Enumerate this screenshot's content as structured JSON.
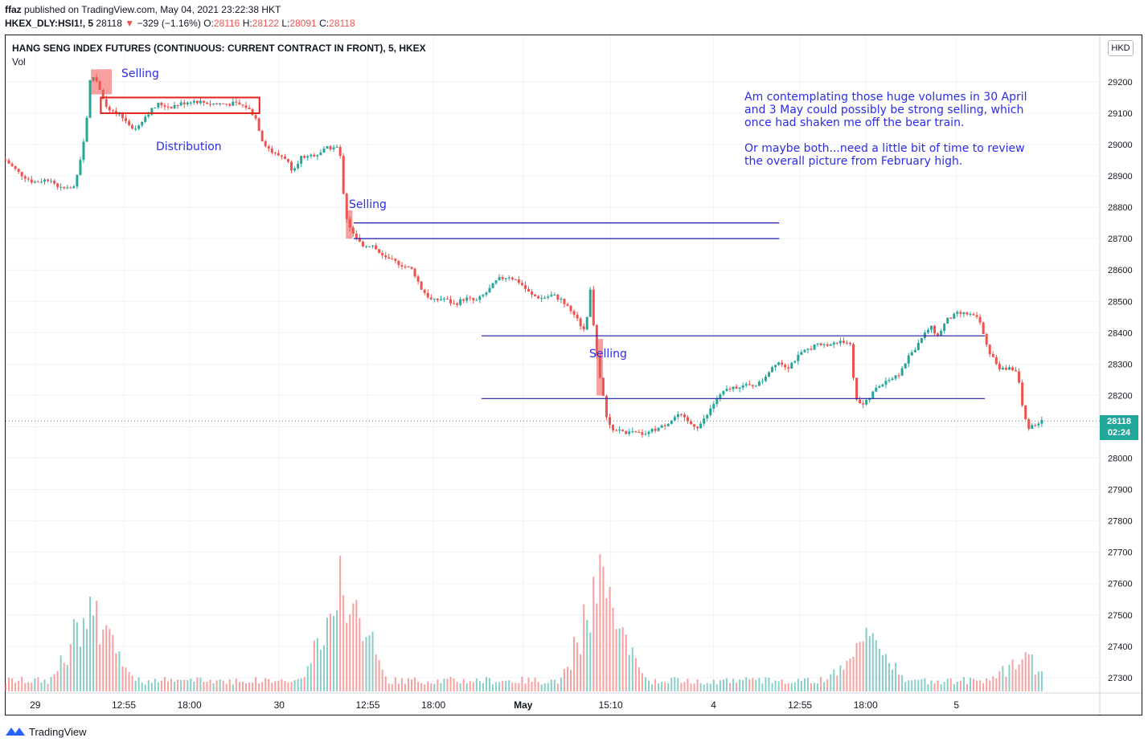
{
  "header": {
    "author": "ffaz",
    "published_text": "published on TradingView.com, May 04, 2021 23:22:38 HKT",
    "symbol": "HKEX_DLY:HSI1!, 5",
    "last": "28118",
    "change_arrow": "▼",
    "change": "−329 (−1.16%)",
    "o_label": "O:",
    "o": "28116",
    "h_label": "H:",
    "h": "28122",
    "l_label": "L:",
    "l": "28091",
    "c_label": "C:",
    "c": "28118"
  },
  "chart_title": "HANG SENG INDEX FUTURES (CONTINUOUS: CURRENT CONTRACT IN FRONT), 5, HKEX",
  "volume_label": "Vol",
  "currency": "HKD",
  "price_tag": {
    "price": "28118",
    "countdown": "02:24"
  },
  "annotations": {
    "selling_1": "Selling",
    "distribution": "Distribution",
    "selling_2": "Selling",
    "selling_3": "Selling",
    "note_p1": "Am contemplating those huge volumes in 30 April\nand 3 May could possibly be strong selling, which\nonce had shaken me off the bear train.",
    "note_p2": "Or maybe both...need a little bit of time to review\nthe overall picture from February high."
  },
  "footer": {
    "brand": "TradingView",
    "logo_icon": "tradingview-logo-icon"
  },
  "colors": {
    "up": "#26a69a",
    "down": "#ef5350",
    "annotation": "#2c2ce6",
    "accent": "#22a79b"
  },
  "chart_data": {
    "type": "candlestick",
    "x_tick_labels": [
      "29",
      "12:55",
      "18:00",
      "30",
      "12:55",
      "18:00",
      "May",
      "15:10",
      "4",
      "12:55",
      "18:00",
      "5"
    ],
    "y_ticks": [
      27300,
      27400,
      27500,
      27600,
      27700,
      27800,
      27900,
      28000,
      28100,
      28200,
      28300,
      28400,
      28500,
      28600,
      28700,
      28800,
      28900,
      29000,
      29100,
      29200
    ],
    "ylim": [
      27240,
      29300
    ],
    "last_price": 28118,
    "price_path": [
      [
        0,
        28950
      ],
      [
        0.012,
        28910
      ],
      [
        0.025,
        28880
      ],
      [
        0.04,
        28890
      ],
      [
        0.05,
        28860
      ],
      [
        0.062,
        28860
      ],
      [
        0.068,
        28950
      ],
      [
        0.073,
        29040
      ],
      [
        0.077,
        29200
      ],
      [
        0.081,
        29220
      ],
      [
        0.087,
        29170
      ],
      [
        0.093,
        29110
      ],
      [
        0.105,
        29090
      ],
      [
        0.118,
        29050
      ],
      [
        0.13,
        29100
      ],
      [
        0.14,
        29130
      ],
      [
        0.15,
        29120
      ],
      [
        0.17,
        29140
      ],
      [
        0.19,
        29130
      ],
      [
        0.21,
        29130
      ],
      [
        0.22,
        29120
      ],
      [
        0.228,
        29090
      ],
      [
        0.235,
        29010
      ],
      [
        0.245,
        28970
      ],
      [
        0.255,
        28960
      ],
      [
        0.262,
        28920
      ],
      [
        0.27,
        28960
      ],
      [
        0.285,
        28970
      ],
      [
        0.295,
        28990
      ],
      [
        0.305,
        28990
      ],
      [
        0.31,
        28800
      ],
      [
        0.312,
        28760
      ],
      [
        0.318,
        28710
      ],
      [
        0.325,
        28680
      ],
      [
        0.335,
        28680
      ],
      [
        0.345,
        28640
      ],
      [
        0.36,
        28620
      ],
      [
        0.372,
        28600
      ],
      [
        0.38,
        28540
      ],
      [
        0.39,
        28500
      ],
      [
        0.4,
        28510
      ],
      [
        0.41,
        28490
      ],
      [
        0.42,
        28510
      ],
      [
        0.43,
        28500
      ],
      [
        0.44,
        28530
      ],
      [
        0.45,
        28570
      ],
      [
        0.46,
        28580
      ],
      [
        0.47,
        28560
      ],
      [
        0.48,
        28520
      ],
      [
        0.49,
        28510
      ],
      [
        0.5,
        28520
      ],
      [
        0.51,
        28500
      ],
      [
        0.52,
        28450
      ],
      [
        0.525,
        28430
      ],
      [
        0.53,
        28400
      ],
      [
        0.535,
        28560
      ],
      [
        0.538,
        28390
      ],
      [
        0.541,
        28300
      ],
      [
        0.546,
        28200
      ],
      [
        0.55,
        28110
      ],
      [
        0.556,
        28090
      ],
      [
        0.57,
        28080
      ],
      [
        0.585,
        28080
      ],
      [
        0.6,
        28100
      ],
      [
        0.615,
        28140
      ],
      [
        0.625,
        28110
      ],
      [
        0.633,
        28100
      ],
      [
        0.64,
        28130
      ],
      [
        0.65,
        28190
      ],
      [
        0.66,
        28220
      ],
      [
        0.67,
        28230
      ],
      [
        0.68,
        28230
      ],
      [
        0.69,
        28240
      ],
      [
        0.698,
        28280
      ],
      [
        0.705,
        28310
      ],
      [
        0.715,
        28290
      ],
      [
        0.72,
        28310
      ],
      [
        0.73,
        28340
      ],
      [
        0.74,
        28360
      ],
      [
        0.75,
        28360
      ],
      [
        0.762,
        28370
      ],
      [
        0.772,
        28370
      ],
      [
        0.776,
        28200
      ],
      [
        0.78,
        28180
      ],
      [
        0.785,
        28170
      ],
      [
        0.795,
        28220
      ],
      [
        0.805,
        28250
      ],
      [
        0.815,
        28260
      ],
      [
        0.825,
        28320
      ],
      [
        0.835,
        28370
      ],
      [
        0.845,
        28420
      ],
      [
        0.852,
        28390
      ],
      [
        0.86,
        28440
      ],
      [
        0.87,
        28460
      ],
      [
        0.88,
        28460
      ],
      [
        0.89,
        28440
      ],
      [
        0.896,
        28360
      ],
      [
        0.902,
        28320
      ],
      [
        0.91,
        28280
      ],
      [
        0.918,
        28290
      ],
      [
        0.925,
        28270
      ],
      [
        0.928,
        28200
      ],
      [
        0.93,
        28140
      ],
      [
        0.935,
        28100
      ],
      [
        0.942,
        28110
      ],
      [
        0.947,
        28118
      ]
    ],
    "volume_spikes": [
      [
        0.078,
        27650
      ],
      [
        0.082,
        27550
      ],
      [
        0.31,
        27770
      ],
      [
        0.312,
        27620
      ],
      [
        0.545,
        27730
      ],
      [
        0.548,
        27600
      ],
      [
        0.786,
        27520
      ],
      [
        0.789,
        27470
      ],
      [
        0.93,
        27400
      ]
    ],
    "zones": [
      {
        "type": "box",
        "label": "Selling",
        "t0": 0.078,
        "t1": 0.097,
        "p0": 29160,
        "p1": 29240
      },
      {
        "type": "rect",
        "label": "Distribution",
        "t0": 0.087,
        "t1": 0.232,
        "p0": 29100,
        "p1": 29150
      },
      {
        "type": "box",
        "label": "Selling",
        "t0": 0.311,
        "t1": 0.317,
        "p0": 28700,
        "p1": 28790
      },
      {
        "type": "box",
        "label": "Selling",
        "t0": 0.54,
        "t1": 0.546,
        "p0": 28200,
        "p1": 28380
      }
    ],
    "h_lines": [
      {
        "price": 28750,
        "t0": 0.318,
        "t1": 0.707
      },
      {
        "price": 28700,
        "t0": 0.318,
        "t1": 0.707
      },
      {
        "price": 28390,
        "t0": 0.435,
        "t1": 0.895
      },
      {
        "price": 28190,
        "t0": 0.435,
        "t1": 0.895
      }
    ]
  }
}
